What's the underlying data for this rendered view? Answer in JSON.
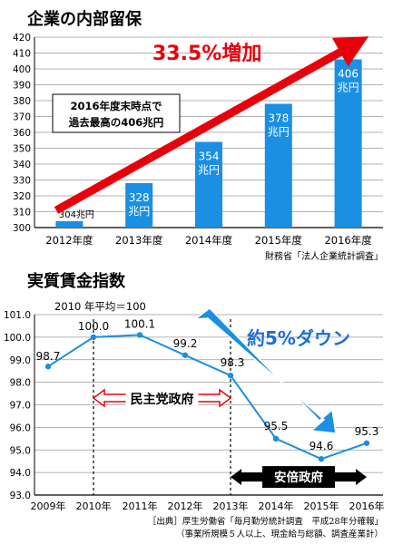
{
  "chart_data": [
    {
      "type": "bar",
      "title": "企業の内部留保",
      "categories": [
        "2012年度",
        "2013年度",
        "2014年度",
        "2015年度",
        "2016年度"
      ],
      "values": [
        304,
        328,
        354,
        378,
        406
      ],
      "value_labels": [
        "304兆円",
        "328兆円",
        "354兆円",
        "378兆円",
        "406兆円"
      ],
      "ylim": [
        300,
        420
      ],
      "yticks": [
        300,
        310,
        320,
        330,
        340,
        350,
        360,
        370,
        380,
        390,
        400,
        410,
        420
      ],
      "grid": true,
      "bar_color": "#1a8fe3",
      "annotation_arrow_text": "33.5%増加",
      "annotation_arrow_color": "#e8000b",
      "annotation_box_lines": [
        "2016年度末時点で",
        "過去最高の406兆円"
      ],
      "source": "財務省「法人企業統計調査」"
    },
    {
      "type": "line",
      "title": "実質賃金指数",
      "note": "2010 年平均＝100",
      "categories": [
        "2009年",
        "2010年",
        "2011年",
        "2012年",
        "2013年",
        "2014年",
        "2015年",
        "2016年"
      ],
      "values": [
        98.7,
        100.0,
        100.1,
        99.2,
        98.3,
        95.5,
        94.6,
        95.3
      ],
      "value_labels": [
        "98.7",
        "100.0",
        "100.1",
        "99.2",
        "98.3",
        "95.5",
        "94.6",
        "95.3"
      ],
      "ylim": [
        93.0,
        101.0
      ],
      "yticks": [
        "93.0",
        "94.0",
        "95.0",
        "96.0",
        "97.0",
        "98.0",
        "99.0",
        "100.0",
        "101.0"
      ],
      "grid": true,
      "line_color": "#1a8fe3",
      "annotation_arrow_text": "約5%ダウン",
      "annotation_arrow_color": "#1a8fe3",
      "periods": [
        {
          "label": "民主党政府",
          "from": "2010年",
          "to": "2013年"
        },
        {
          "label": "安倍政府",
          "from": "2013年",
          "to": "2016年"
        }
      ],
      "source_lines": [
        "［出典］厚生労働省「毎月勤労統計調査　平成28年分確報」",
        "（事業所規模５人以上、現金給与総額、調査産業計）"
      ]
    }
  ]
}
